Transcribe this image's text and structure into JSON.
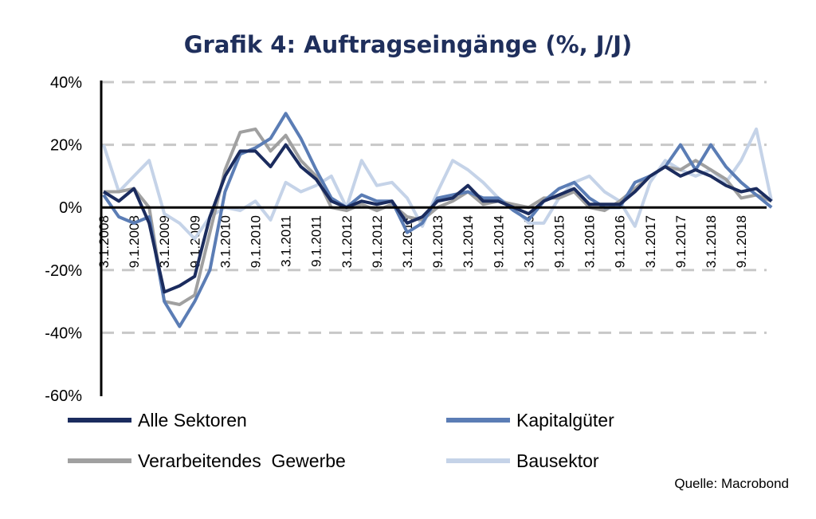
{
  "chart_data": {
    "type": "line",
    "title": "Grafik 4: Auftragseingänge (%, J/J)",
    "xlabel": "",
    "ylabel": "",
    "ylim": [
      -60,
      40
    ],
    "yticks": [
      "40%",
      "20%",
      "0%",
      "-20%",
      "-40%",
      "-60%"
    ],
    "ytick_values": [
      40,
      20,
      0,
      -20,
      -40,
      -60
    ],
    "grid": "horizontal dashed",
    "xticks": [
      "3.1.2008",
      "9.1.2008",
      "3.1.2009",
      "9.1.2009",
      "3.1.2010",
      "9.1.2010",
      "3.1.2011",
      "9.1.2011",
      "3.1.2012",
      "9.1.2012",
      "3.1.2013",
      "9.1.2013",
      "3.1.2014",
      "9.1.2014",
      "3.1.2015",
      "9.1.2015",
      "3.1.2016",
      "9.1.2016",
      "3.1.2017",
      "9.1.2017",
      "3.1.2018",
      "9.1.2018"
    ],
    "x": [
      "2008-03",
      "2008-06",
      "2008-09",
      "2008-12",
      "2009-03",
      "2009-06",
      "2009-09",
      "2009-12",
      "2010-03",
      "2010-06",
      "2010-09",
      "2010-12",
      "2011-03",
      "2011-06",
      "2011-09",
      "2011-12",
      "2012-03",
      "2012-06",
      "2012-09",
      "2012-12",
      "2013-03",
      "2013-06",
      "2013-09",
      "2013-12",
      "2014-03",
      "2014-06",
      "2014-09",
      "2014-12",
      "2015-03",
      "2015-06",
      "2015-09",
      "2015-12",
      "2016-03",
      "2016-06",
      "2016-09",
      "2016-12",
      "2017-03",
      "2017-06",
      "2017-09",
      "2017-12",
      "2018-03",
      "2018-06",
      "2018-09",
      "2018-12",
      "2019-03"
    ],
    "series": [
      {
        "name": "Alle Sektoren",
        "color": "#1b2c5e",
        "values": [
          5,
          2,
          6,
          -5,
          -27,
          -25,
          -22,
          -3,
          10,
          18,
          18,
          13,
          20,
          13,
          9,
          2,
          0,
          2,
          1,
          2,
          -5,
          -3,
          2,
          3,
          7,
          2,
          2,
          0,
          -2,
          2,
          4,
          6,
          1,
          1,
          1,
          5,
          10,
          13,
          10,
          12,
          10,
          7,
          5,
          6,
          2
        ]
      },
      {
        "name": "Kapitalgüter",
        "color": "#5b7db5",
        "values": [
          4,
          -3,
          -5,
          -3,
          -30,
          -38,
          -30,
          -20,
          5,
          17,
          19,
          22,
          30,
          22,
          12,
          3,
          0,
          4,
          2,
          2,
          -8,
          -5,
          3,
          4,
          5,
          3,
          3,
          -1,
          -4,
          2,
          6,
          8,
          3,
          0,
          0,
          8,
          10,
          13,
          20,
          12,
          20,
          13,
          8,
          4,
          0
        ]
      },
      {
        "name": "Verarbeitendes  Gewerbe",
        "color": "#a0a0a0",
        "values": [
          5,
          5,
          6,
          0,
          -30,
          -31,
          -28,
          -8,
          12,
          24,
          25,
          18,
          23,
          15,
          10,
          0,
          -1,
          1,
          -1,
          1,
          -3,
          -4,
          0,
          2,
          5,
          1,
          2,
          1,
          0,
          3,
          3,
          5,
          0,
          -1,
          2,
          6,
          10,
          13,
          12,
          15,
          12,
          9,
          3,
          4,
          2
        ]
      },
      {
        "name": "Bausektor",
        "color": "#c5d3e8",
        "values": [
          20,
          5,
          10,
          15,
          -2,
          -5,
          -10,
          -3,
          0,
          -1,
          2,
          -4,
          8,
          5,
          7,
          10,
          0,
          15,
          7,
          8,
          3,
          -6,
          5,
          15,
          12,
          8,
          3,
          0,
          -5,
          -5,
          3,
          8,
          10,
          5,
          2,
          -6,
          8,
          15,
          12,
          10,
          12,
          8,
          15,
          25,
          2
        ]
      }
    ],
    "legend": "bottom, two columns",
    "source": "Quelle: Macrobond"
  }
}
